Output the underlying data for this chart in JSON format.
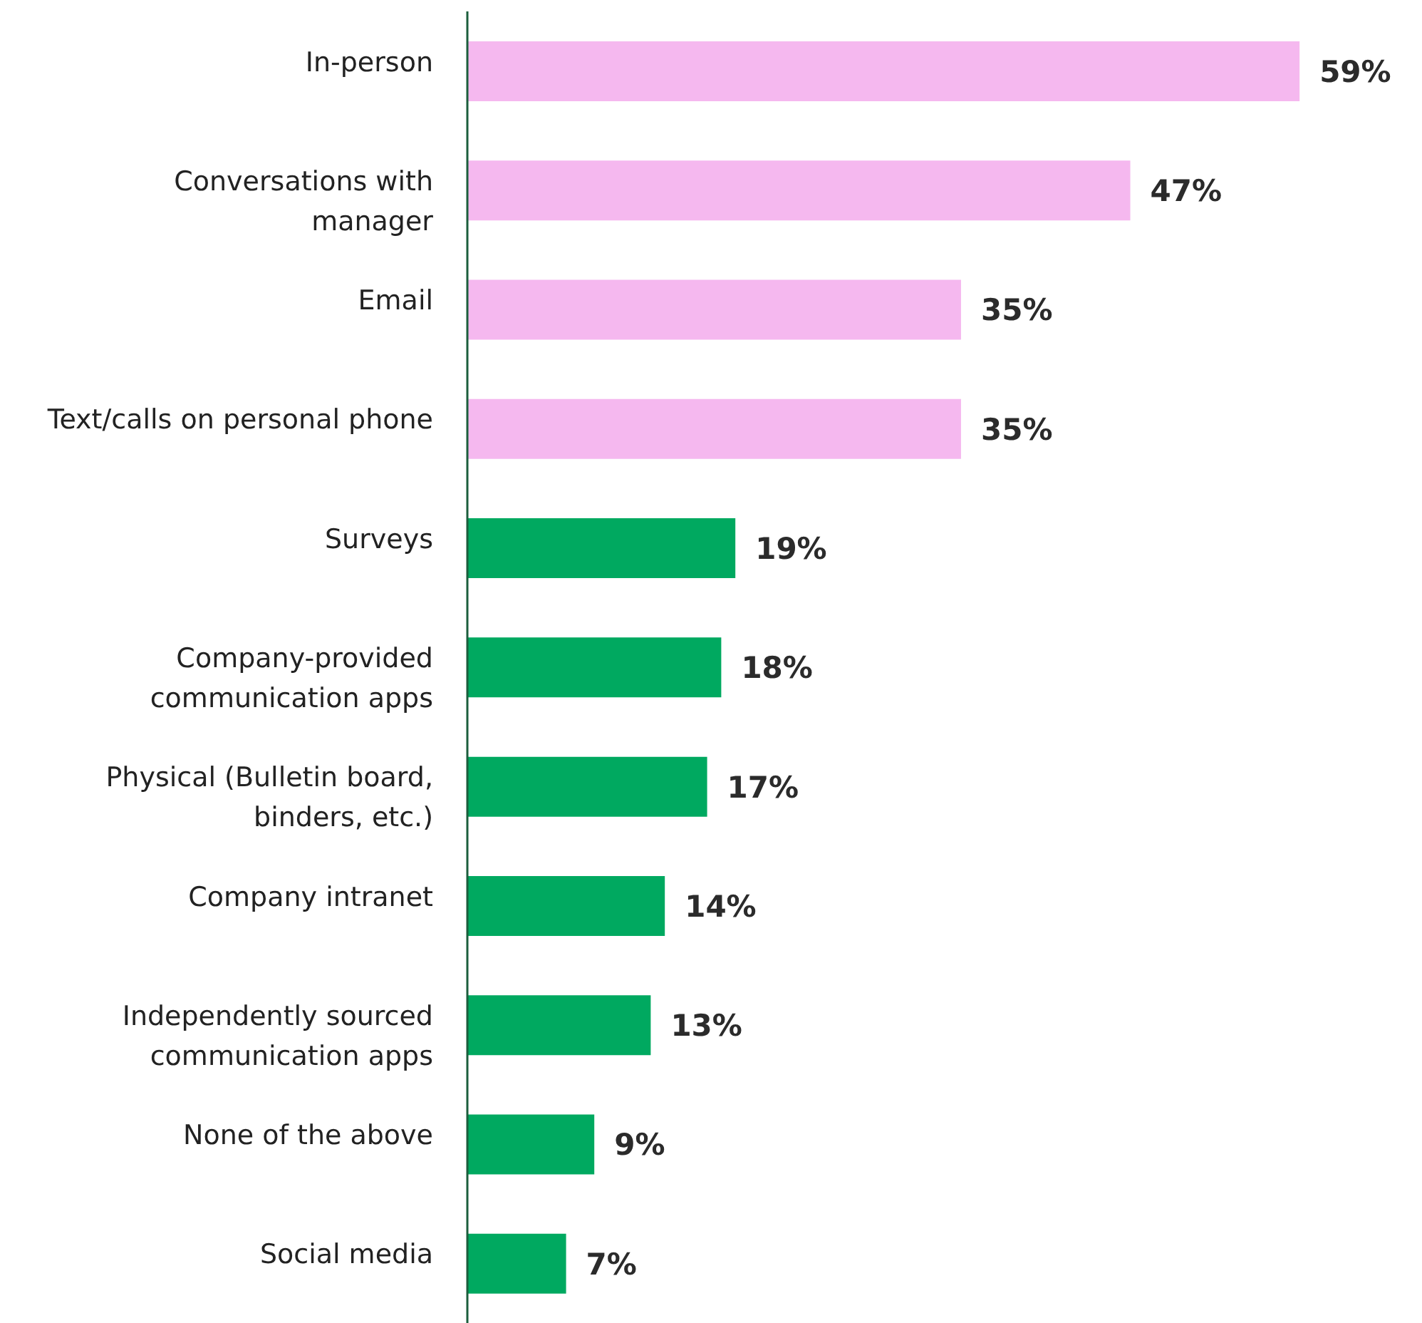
{
  "chart_data": {
    "type": "bar",
    "orientation": "horizontal",
    "categories": [
      "In-person",
      "Conversations with manager",
      "Email",
      "Text/calls on personal phone",
      "Surveys",
      "Company-provided communication apps",
      "Physical (Bulletin board, binders, etc.)",
      "Company intranet",
      "Independently sourced communication apps",
      "None of the above",
      "Social media"
    ],
    "values": [
      59,
      47,
      35,
      35,
      19,
      18,
      17,
      14,
      13,
      9,
      7
    ],
    "value_labels": [
      "59%",
      "47%",
      "35%",
      "35%",
      "19%",
      "18%",
      "17%",
      "14%",
      "13%",
      "9%",
      "7%"
    ],
    "colors": [
      "#f5b8ef",
      "#f5b8ef",
      "#f5b8ef",
      "#f5b8ef",
      "#00a960",
      "#00a960",
      "#00a960",
      "#00a960",
      "#00a960",
      "#00a960",
      "#00a960"
    ]
  }
}
